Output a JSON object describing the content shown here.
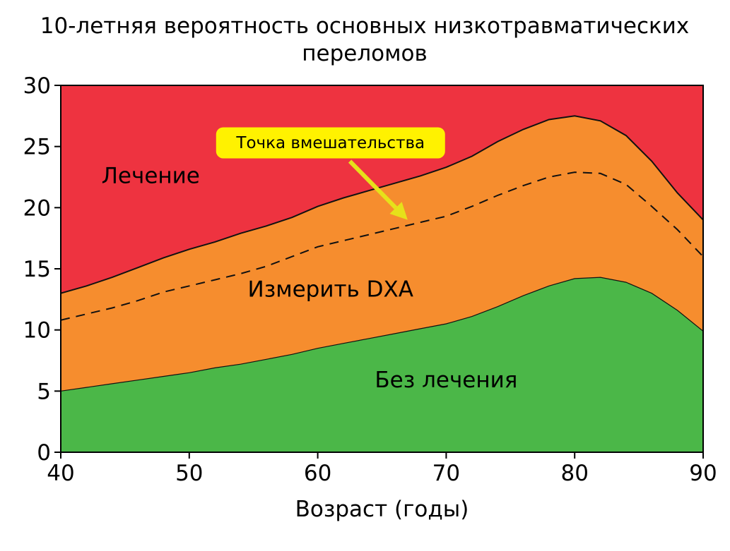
{
  "chart_data": {
    "type": "area",
    "title_lines": [
      "10-летняя вероятность основных низкотравматических",
      "переломов"
    ],
    "xlabel": "Возраст (годы)",
    "ylabel": "",
    "xlim": [
      40,
      90
    ],
    "ylim": [
      0,
      30
    ],
    "x_ticks": [
      40,
      50,
      60,
      70,
      80,
      90
    ],
    "y_ticks": [
      0,
      5,
      10,
      15,
      20,
      25,
      30
    ],
    "grid": false,
    "x": [
      40,
      42,
      44,
      46,
      48,
      50,
      52,
      54,
      56,
      58,
      60,
      62,
      64,
      66,
      68,
      70,
      72,
      74,
      76,
      78,
      80,
      82,
      84,
      86,
      88,
      90
    ],
    "lower_threshold": [
      5.0,
      5.3,
      5.6,
      5.9,
      6.2,
      6.5,
      6.9,
      7.2,
      7.6,
      8.0,
      8.5,
      8.9,
      9.3,
      9.7,
      10.1,
      10.5,
      11.1,
      11.9,
      12.8,
      13.6,
      14.2,
      14.3,
      13.9,
      13.0,
      11.6,
      9.9
    ],
    "upper_threshold": [
      13.0,
      13.6,
      14.3,
      15.1,
      15.9,
      16.6,
      17.2,
      17.9,
      18.5,
      19.2,
      20.1,
      20.8,
      21.4,
      22.0,
      22.6,
      23.3,
      24.2,
      25.4,
      26.4,
      27.2,
      27.5,
      27.1,
      25.9,
      23.8,
      21.2,
      19.0
    ],
    "intervention_threshold": [
      10.8,
      11.3,
      11.8,
      12.4,
      13.1,
      13.6,
      14.1,
      14.6,
      15.2,
      16.0,
      16.8,
      17.3,
      17.8,
      18.3,
      18.8,
      19.3,
      20.1,
      21.0,
      21.8,
      22.5,
      22.9,
      22.8,
      21.9,
      20.1,
      18.2,
      16.0
    ],
    "regions": [
      {
        "label": "Лечение",
        "color": "#ee3340",
        "label_at": [
          47,
          22.5
        ]
      },
      {
        "label": "Измерить DXA",
        "color": "#f68d2e",
        "label_at": [
          61,
          13.2
        ]
      },
      {
        "label": "Без лечения",
        "color": "#4bb748",
        "label_at": [
          70,
          5.8
        ]
      }
    ],
    "annotation": {
      "text": "Точка вмешательства",
      "box_color": "#fff200",
      "box_center": [
        61,
        25.3
      ],
      "arrow_from": [
        62.5,
        23.8
      ],
      "arrow_to": [
        67,
        19.0
      ],
      "arrow_color": "#e6e11a"
    }
  }
}
